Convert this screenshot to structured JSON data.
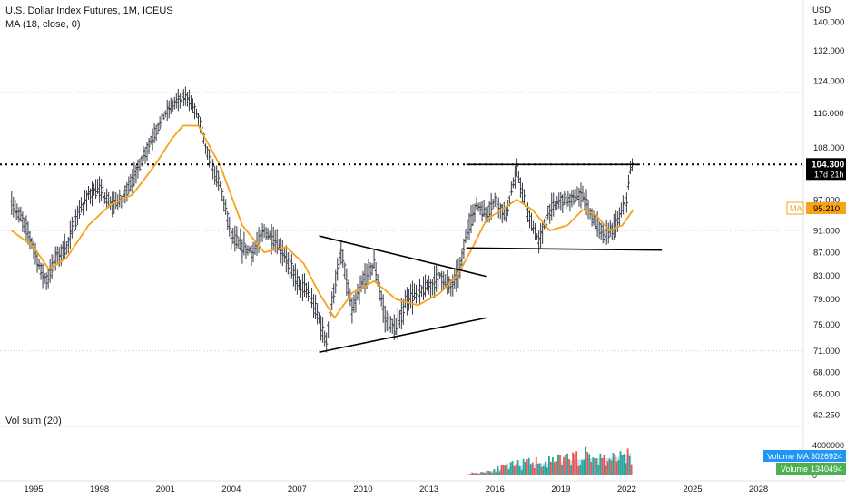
{
  "legend": {
    "symbol": "U.S. Dollar Index Futures, 1M, ICEUS",
    "indicator": "MA (18, close, 0)",
    "volume": "Vol sum (20)"
  },
  "price_axis": {
    "currency": "USD",
    "ticks": [
      "140.000",
      "132.000",
      "124.000",
      "116.000",
      "108.000",
      "97.000",
      "91.000",
      "87.000",
      "83.000",
      "79.000",
      "75.000",
      "71.000",
      "68.000",
      "65.000",
      "62.250"
    ],
    "last_price": "104.300",
    "countdown": "17d 21h",
    "ma_label": "MA",
    "ma_value": "95.210"
  },
  "volume_axis": {
    "top_tick": "4000000",
    "zero_tick": "0",
    "ma_label": "Volume MA",
    "ma_value": "3026924",
    "vol_label": "Volume",
    "vol_value": "1340494"
  },
  "time_axis": {
    "ticks": [
      "1995",
      "1998",
      "2001",
      "2004",
      "2007",
      "2010",
      "2013",
      "2016",
      "2019",
      "2022",
      "2025",
      "2028"
    ]
  },
  "colors": {
    "ma_line": "#f7a21b",
    "bars": "#363a45",
    "vol_up": "#26a69a",
    "vol_down": "#ef5350",
    "vol_ma_fill": "#b3d4f5",
    "volume_ma_badge": "#2196f3",
    "volume_badge": "#4caf50",
    "grid": "#d1d4dc"
  },
  "chart_data": {
    "type": "ohlc",
    "ylim": [
      62.25,
      144
    ],
    "price_line": 104.3,
    "series": [
      {
        "name": "U.S. Dollar Index Futures",
        "x": [
          1994.0,
          1994.5,
          1995.0,
          1995.3,
          1995.6,
          1996.0,
          1996.5,
          1997.0,
          1997.5,
          1998.0,
          1998.5,
          1999.0,
          1999.5,
          2000.0,
          2000.5,
          2001.0,
          2001.5,
          2002.0,
          2002.5,
          2003.0,
          2003.5,
          2004.0,
          2004.5,
          2005.0,
          2005.5,
          2006.0,
          2006.5,
          2007.0,
          2007.5,
          2008.0,
          2008.3,
          2008.6,
          2009.0,
          2009.5,
          2010.0,
          2010.5,
          2011.0,
          2011.5,
          2012.0,
          2012.5,
          2013.0,
          2013.5,
          2014.0,
          2014.4,
          2014.8,
          2015.2,
          2015.6,
          2016.0,
          2016.5,
          2017.0,
          2017.5,
          2018.0,
          2018.5,
          2019.0,
          2019.5,
          2020.0,
          2020.5,
          2021.0,
          2021.5,
          2022.0,
          2022.2
        ],
        "y": [
          96,
          93,
          88,
          84,
          82,
          86,
          88,
          94,
          98,
          99,
          96,
          97,
          101,
          106,
          111,
          116,
          119,
          120,
          115,
          105,
          100,
          90,
          88,
          87,
          91,
          89,
          86,
          82,
          80,
          76,
          72,
          79,
          87,
          77,
          82,
          85,
          76,
          74,
          79,
          80,
          81,
          83,
          81,
          84,
          92,
          96,
          94,
          97,
          94,
          103,
          94,
          89,
          95,
          97,
          97,
          98,
          93,
          90,
          92,
          97,
          104
        ]
      }
    ],
    "ma": {
      "name": "MA (18, close, 0)",
      "x": [
        1994.0,
        1995.0,
        1995.7,
        1996.5,
        1997.5,
        1998.5,
        1999.5,
        2000.5,
        2001.3,
        2001.8,
        2002.5,
        2003.5,
        2004.5,
        2005.5,
        2006.5,
        2007.3,
        2008.0,
        2008.7,
        2009.5,
        2010.5,
        2011.5,
        2012.5,
        2013.5,
        2014.3,
        2015.0,
        2015.6,
        2016.3,
        2017.0,
        2017.7,
        2018.5,
        2019.3,
        2020.0,
        2020.6,
        2021.2,
        2021.8,
        2022.3
      ],
      "y": [
        91,
        88,
        84,
        86,
        92,
        96,
        98,
        104,
        110,
        113,
        113,
        104,
        92,
        87,
        88,
        85,
        80,
        76,
        80,
        82,
        79,
        78,
        80,
        83,
        88,
        93,
        95,
        97,
        95,
        91,
        92,
        95,
        94,
        91,
        92,
        95
      ]
    },
    "annotations": {
      "resistance_dotted": 104.3,
      "resistance_line": {
        "x": [
          2014.7,
          2022.6
        ],
        "y": [
          104.3,
          104.3
        ]
      },
      "support_line": {
        "x": [
          2014.7,
          2023.6
        ],
        "y": [
          87.8,
          87.4
        ]
      },
      "triangle_upper": {
        "x": [
          2008.0,
          2015.6
        ],
        "y": [
          90.0,
          82.8
        ]
      },
      "triangle_lower": {
        "x": [
          2008.0,
          2015.6
        ],
        "y": [
          70.8,
          76.0
        ]
      }
    },
    "volume": {
      "ylim": [
        0,
        4000000
      ],
      "x": [
        2015.0,
        2015.5,
        2016.0,
        2016.5,
        2017.0,
        2017.5,
        2018.0,
        2018.5,
        2019.0,
        2019.5,
        2020.0,
        2020.5,
        2021.0,
        2021.5,
        2022.0,
        2022.2
      ],
      "values": [
        300000,
        500000,
        800000,
        1100000,
        1400000,
        1600000,
        1900000,
        1700000,
        2000000,
        2200000,
        2600000,
        2400000,
        2100000,
        2300000,
        3300000,
        1340494
      ],
      "ma_values": [
        200000,
        400000,
        700000,
        1000000,
        1200000,
        1400000,
        1600000,
        1700000,
        1800000,
        2000000,
        2200000,
        2300000,
        2300000,
        2400000,
        2800000,
        3026924
      ]
    }
  }
}
